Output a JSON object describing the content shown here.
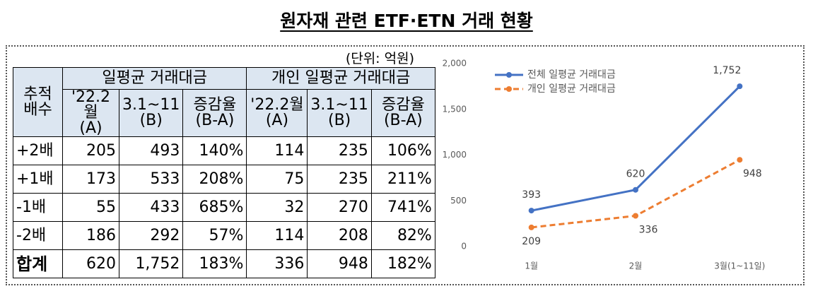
{
  "title": "원자재 관련 ETF·ETN 거래 현황",
  "unit": "(단위:  억원)",
  "table": {
    "corner": "추적\n배수",
    "groups": [
      "일평균 거래대금",
      "개인 일평균 거래대금"
    ],
    "columns": [
      "'22.2월\n(A)",
      "3.1~11\n(B)",
      "증감율\n(B-A)",
      "'22.2월\n(A)",
      "3.1~11\n(B)",
      "증감율\n(B-A)"
    ],
    "rows": [
      [
        "+2배",
        "205",
        "493",
        "140%",
        "114",
        "235",
        "106%"
      ],
      [
        "+1배",
        "173",
        "533",
        "208%",
        "75",
        "235",
        "211%"
      ],
      [
        "-1배",
        "55",
        "433",
        "685%",
        "32",
        "270",
        "741%"
      ],
      [
        "-2배",
        "186",
        "292",
        "57%",
        "114",
        "208",
        "82%"
      ],
      [
        "합계",
        "620",
        "1,752",
        "183%",
        "336",
        "948",
        "182%"
      ]
    ]
  },
  "chart_data": {
    "type": "line",
    "categories": [
      "1월",
      "2월",
      "3월(1~11일)"
    ],
    "series": [
      {
        "name": "전체 일평균 거래대금",
        "color": "#4472c4",
        "line_style": "solid",
        "values": [
          393,
          620,
          1752
        ],
        "value_labels": [
          "393",
          "620",
          "1,752"
        ]
      },
      {
        "name": "개인 일평균 거래대금",
        "color": "#ed7d31",
        "line_style": "dashed",
        "values": [
          209,
          336,
          948
        ]
      }
    ],
    "ylim": [
      0,
      2000
    ],
    "yticks": [
      0,
      500,
      {
        "value": 1000,
        "label": "1,000"
      },
      {
        "value": 1500,
        "label": "1,500"
      },
      {
        "value": 2000,
        "label": "2,000"
      }
    ],
    "legend": "top-left"
  }
}
